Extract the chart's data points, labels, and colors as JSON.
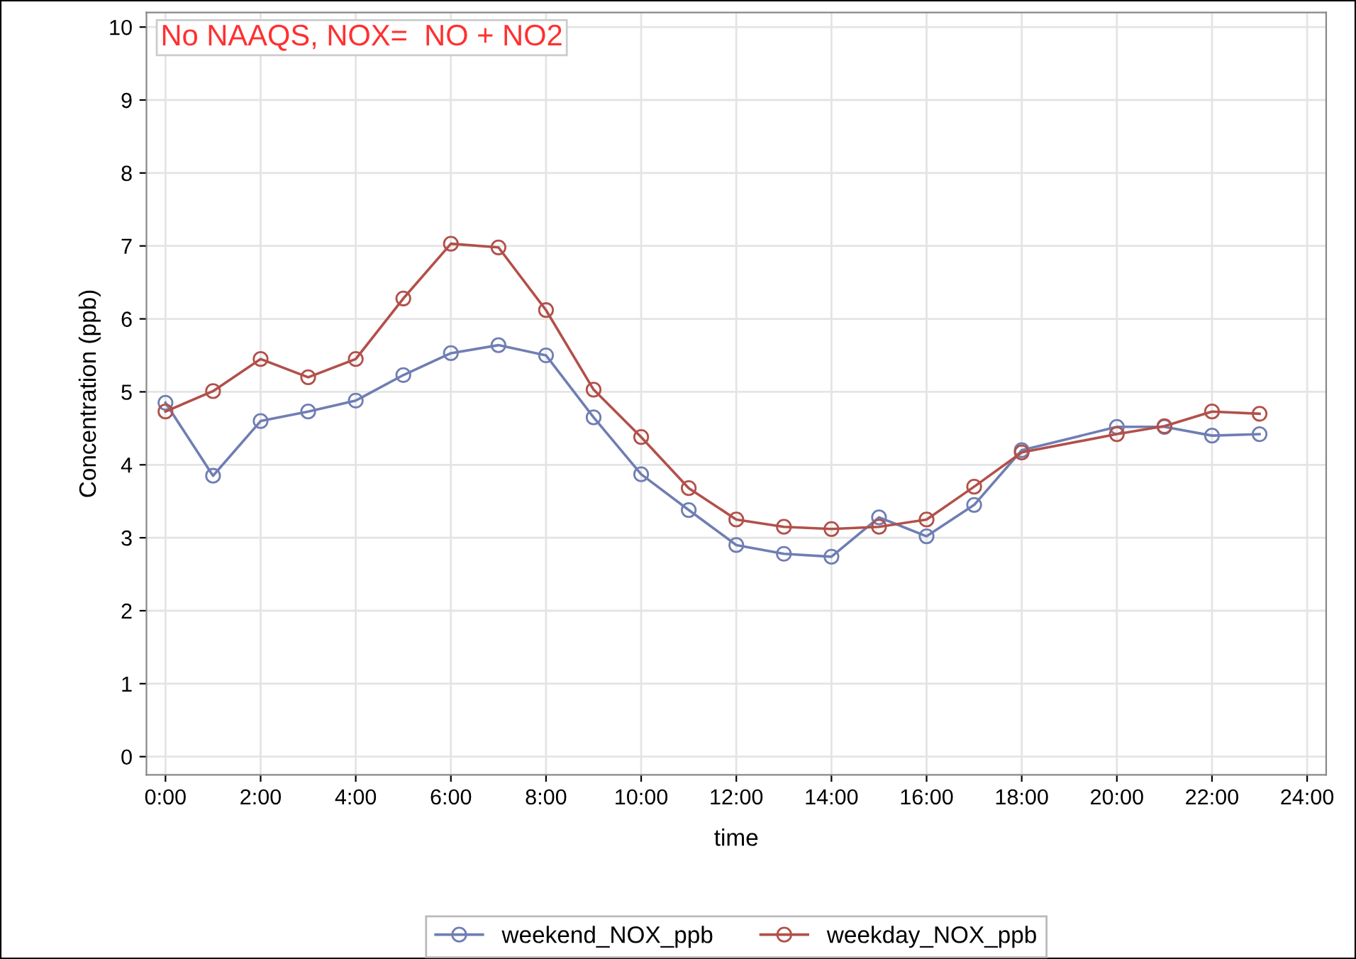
{
  "chart_data": {
    "type": "line",
    "xlabel": "time",
    "ylabel": "Concentration (ppb)",
    "x": [
      0,
      1,
      2,
      3,
      4,
      5,
      6,
      7,
      8,
      9,
      10,
      11,
      12,
      13,
      14,
      15,
      16,
      17,
      18,
      20,
      21,
      22,
      23
    ],
    "series": [
      {
        "name": "weekend_NOX_ppb",
        "color": "#6f7eb3",
        "values": [
          4.85,
          3.85,
          4.6,
          4.73,
          4.88,
          5.23,
          5.53,
          5.64,
          5.5,
          4.65,
          3.87,
          3.38,
          2.9,
          2.78,
          2.74,
          3.28,
          3.02,
          3.45,
          4.2,
          4.52,
          4.52,
          4.4,
          4.42
        ]
      },
      {
        "name": "weekday_NOX_ppb",
        "color": "#b2504a",
        "values": [
          4.73,
          5.01,
          5.45,
          5.2,
          5.45,
          6.28,
          7.03,
          6.98,
          6.12,
          5.03,
          4.38,
          3.68,
          3.25,
          3.15,
          3.12,
          3.15,
          3.25,
          3.7,
          4.17,
          4.42,
          4.53,
          4.73,
          4.7
        ]
      }
    ],
    "xlim": [
      -0.4,
      24.4
    ],
    "ylim": [
      -0.25,
      10.2
    ],
    "xticks": [
      {
        "value": 0,
        "label": "0:00"
      },
      {
        "value": 2,
        "label": "2:00"
      },
      {
        "value": 4,
        "label": "4:00"
      },
      {
        "value": 6,
        "label": "6:00"
      },
      {
        "value": 8,
        "label": "8:00"
      },
      {
        "value": 10,
        "label": "10:00"
      },
      {
        "value": 12,
        "label": "12:00"
      },
      {
        "value": 14,
        "label": "14:00"
      },
      {
        "value": 16,
        "label": "16:00"
      },
      {
        "value": 18,
        "label": "18:00"
      },
      {
        "value": 20,
        "label": "20:00"
      },
      {
        "value": 22,
        "label": "22:00"
      },
      {
        "value": 24,
        "label": "24:00"
      }
    ],
    "yticks": [
      0,
      1,
      2,
      3,
      4,
      5,
      6,
      7,
      8,
      9,
      10
    ],
    "annotations": [
      "No NAAQS, NOX=  NO + NO2"
    ],
    "grid": true,
    "legend": "bottom",
    "marker": "circle",
    "line_style": "solid"
  }
}
